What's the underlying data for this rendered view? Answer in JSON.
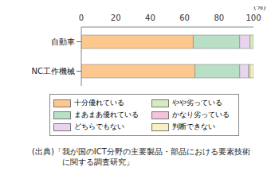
{
  "chart_data": {
    "type": "bar",
    "orientation": "horizontal",
    "stacked": true,
    "grid": false,
    "xlabel": "(%)",
    "categories": [
      "自動車",
      "NC工作機械"
    ],
    "xlim": [
      0,
      100
    ],
    "xticks": [
      0,
      20,
      40,
      60,
      80,
      100
    ],
    "series": [
      {
        "name": "十分優れている",
        "color": "#fcc88e",
        "values": [
          65,
          66
        ]
      },
      {
        "name": "まあまあ優れている",
        "color": "#b9dfc6",
        "values": [
          27,
          26
        ]
      },
      {
        "name": "どちらでもない",
        "color": "#e8d4ee",
        "values": [
          6,
          5
        ]
      },
      {
        "name": "やや劣っている",
        "color": "#d6ecc0",
        "values": [
          2,
          1
        ]
      },
      {
        "name": "かなり劣っている",
        "color": "#f4c4dc",
        "values": [
          0,
          0
        ]
      },
      {
        "name": "判断できない",
        "color": "#f8f0c0",
        "values": [
          0,
          2
        ]
      }
    ],
    "annotations": [
      "(出典)「我が国のICT分野の主要製品・部品における要素技術",
      "に関する調査研究」"
    ]
  }
}
